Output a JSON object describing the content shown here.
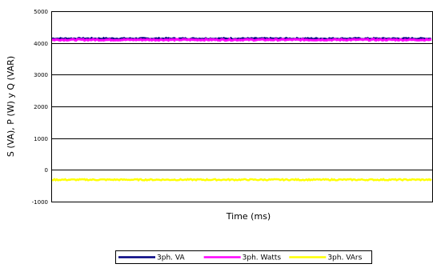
{
  "chart_data": {
    "type": "line",
    "title": "",
    "xlabel": "Time (ms)",
    "ylabel": "S (VA), P (W) y Q (VAR)",
    "ylim": [
      -1000,
      5000
    ],
    "yticks": [
      "5000",
      "4000",
      "3000",
      "2000",
      "1000",
      "0",
      "-1000"
    ],
    "grid": "horizontal major gridlines at each 1000",
    "x_tick_labels": false,
    "legend_position": "bottom",
    "series": [
      {
        "name": "3ph. VA",
        "color": "#000080",
        "approx_value": 4130,
        "noise": 20
      },
      {
        "name": "3ph. Watts",
        "color": "#ff00ff",
        "approx_value": 4100,
        "noise": 20
      },
      {
        "name": "3ph. VArs",
        "color": "#ffff00",
        "approx_value": -310,
        "noise": 20
      }
    ]
  }
}
